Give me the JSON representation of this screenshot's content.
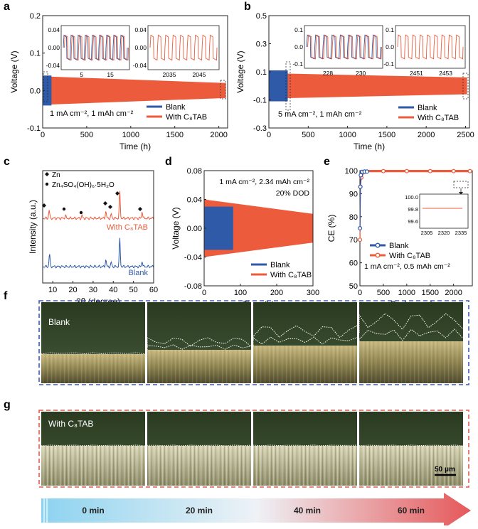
{
  "colors": {
    "blank": "#2f5aa8",
    "with": "#ec5b3b",
    "arrow_start": "#8dd3ef",
    "arrow_end": "#e5585a"
  },
  "panel_letters": [
    "a",
    "b",
    "c",
    "d",
    "e",
    "f",
    "g"
  ],
  "chart_data": [
    {
      "id": "a",
      "type": "line",
      "xlabel": "Time (h)",
      "ylabel": "Voltage (V)",
      "xlim": [
        0,
        2100
      ],
      "ylim": [
        -0.1,
        0.2
      ],
      "xticks": [
        "0",
        "500",
        "1000",
        "1500",
        "2000"
      ],
      "yticks": [
        "-0.1",
        "0.0",
        "0.1",
        "0.2"
      ],
      "annotation": "1 mA cm⁻², 1 mAh cm⁻²",
      "series": [
        {
          "name": "Blank",
          "x_range": [
            0,
            100
          ],
          "amplitude": 0.04
        },
        {
          "name": "With C₈TAB",
          "x_range": [
            0,
            2080
          ],
          "amplitude_start": 0.038,
          "amplitude_end": 0.02
        }
      ],
      "insets": [
        {
          "xticks": [
            "5",
            "15"
          ],
          "yticks": [
            "0.04",
            "0.00",
            "-0.04"
          ],
          "series": [
            "Blank",
            "With C₈TAB"
          ]
        },
        {
          "xticks": [
            "2035",
            "2045"
          ],
          "yticks": [
            "0.04",
            "0.00",
            "-0.04"
          ],
          "series": [
            "With C₈TAB"
          ]
        }
      ]
    },
    {
      "id": "b",
      "type": "line",
      "xlabel": "Time (h)",
      "ylabel": "Voltage (V)",
      "xlim": [
        0,
        2550
      ],
      "ylim": [
        -0.3,
        0.5
      ],
      "xticks": [
        "0",
        "500",
        "1000",
        "1500",
        "2000",
        "2500"
      ],
      "yticks": [
        "-0.3",
        "-0.1",
        "0.1",
        "0.3",
        "0.5"
      ],
      "annotation": "5 mA cm⁻², 1 mAh cm⁻²",
      "series": [
        {
          "name": "Blank",
          "x_range": [
            0,
            240
          ],
          "amplitude": 0.12
        },
        {
          "name": "With C₈TAB",
          "x_range": [
            0,
            2520
          ],
          "amplitude_start": 0.09,
          "amplitude_end": 0.06
        }
      ],
      "insets": [
        {
          "xticks": [
            "228",
            "230"
          ],
          "yticks": [
            "0.1",
            "0.0",
            "-0.1"
          ],
          "series": [
            "Blank",
            "With C₈TAB"
          ]
        },
        {
          "xticks": [
            "2451",
            "2453"
          ],
          "yticks": [
            "0.1",
            "0.0",
            "-0.1"
          ],
          "series": [
            "With C₈TAB"
          ]
        }
      ]
    },
    {
      "id": "c",
      "type": "line",
      "xlabel": "2θ (degree)",
      "ylabel": "Intensity (a.u.)",
      "xlim": [
        5,
        60
      ],
      "xticks": [
        "10",
        "20",
        "30",
        "40",
        "50",
        "60"
      ],
      "legend": [
        "Zn",
        "Zn₄SO₄(OH)₆·5H₂O"
      ],
      "series": [
        {
          "name": "With C₈TAB",
          "peaks_2theta": [
            8.2,
            16.3,
            24.5,
            36.3,
            39.0,
            43.2,
            54.3
          ]
        },
        {
          "name": "Blank",
          "peaks_2theta": [
            8.4,
            36.3,
            39.0,
            43.2,
            54.3
          ]
        }
      ]
    },
    {
      "id": "d",
      "type": "line",
      "xlabel": "Time (h)",
      "ylabel": "Voltage (V)",
      "xlim": [
        0,
        300
      ],
      "ylim": [
        -0.08,
        0.08
      ],
      "xticks": [
        "0",
        "100",
        "200",
        "300"
      ],
      "yticks": [
        "-0.08",
        "-0.04",
        "0.00",
        "0.04",
        "0.08"
      ],
      "annotation": "1 mA cm⁻², 2.34 mAh cm⁻²",
      "annotation2": "20% DOD",
      "series": [
        {
          "name": "Blank",
          "x_range": [
            0,
            80
          ],
          "amplitude": 0.03
        },
        {
          "name": "With C₈TAB",
          "x_range": [
            0,
            300
          ],
          "amplitude_start": 0.04,
          "amplitude_end": 0.02
        }
      ]
    },
    {
      "id": "e",
      "type": "scatter",
      "xlabel": "Cycle number",
      "ylabel": "CE (%)",
      "xlim": [
        0,
        2400
      ],
      "ylim": [
        50,
        100
      ],
      "xticks": [
        "0",
        "500",
        "1000",
        "1500",
        "2000"
      ],
      "yticks": [
        "50",
        "60",
        "70",
        "80",
        "90",
        "100"
      ],
      "annotation": "1 mA cm⁻², 0.5 mAh cm⁻²",
      "series": [
        {
          "name": "Blank",
          "points": [
            [
              1,
              75
            ],
            [
              10,
              93
            ],
            [
              20,
              98
            ],
            [
              50,
              99.5
            ],
            [
              100,
              99.6
            ],
            [
              150,
              99.6
            ]
          ]
        },
        {
          "name": "With C₈TAB",
          "points": [
            [
              1,
              70
            ],
            [
              10,
              93
            ],
            [
              30,
              97
            ],
            [
              100,
              99.5
            ],
            [
              500,
              99.8
            ],
            [
              1000,
              99.8
            ],
            [
              1500,
              99.8
            ],
            [
              2000,
              99.8
            ],
            [
              2350,
              99.8
            ]
          ]
        }
      ],
      "inset": {
        "xticks": [
          "2305",
          "2320",
          "2335"
        ],
        "yticks": [
          "100.0",
          "99.8",
          "99.6"
        ]
      }
    }
  ],
  "microscopy": {
    "f": {
      "label": "Blank"
    },
    "g": {
      "label": "With C₈TAB",
      "scale_bar": "50 μm"
    }
  },
  "timeline": [
    "0 min",
    "20 min",
    "40 min",
    "60 min"
  ]
}
